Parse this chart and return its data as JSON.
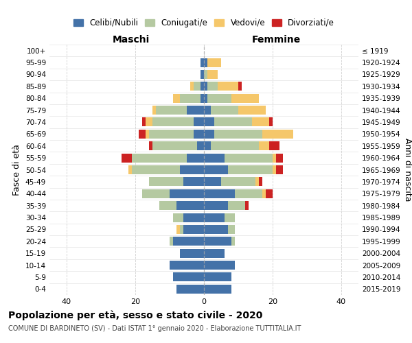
{
  "age_groups": [
    "0-4",
    "5-9",
    "10-14",
    "15-19",
    "20-24",
    "25-29",
    "30-34",
    "35-39",
    "40-44",
    "45-49",
    "50-54",
    "55-59",
    "60-64",
    "65-69",
    "70-74",
    "75-79",
    "80-84",
    "85-89",
    "90-94",
    "95-99",
    "100+"
  ],
  "birth_years": [
    "2015-2019",
    "2010-2014",
    "2005-2009",
    "2000-2004",
    "1995-1999",
    "1990-1994",
    "1985-1989",
    "1980-1984",
    "1975-1979",
    "1970-1974",
    "1965-1969",
    "1960-1964",
    "1955-1959",
    "1950-1954",
    "1945-1949",
    "1940-1944",
    "1935-1939",
    "1930-1934",
    "1925-1929",
    "1920-1924",
    "≤ 1919"
  ],
  "colors": {
    "celibe": "#4472a8",
    "coniugato": "#b5c9a1",
    "vedovo": "#f5c76a",
    "divorziato": "#cc2222"
  },
  "maschi": {
    "celibe": [
      8,
      9,
      10,
      7,
      9,
      6,
      6,
      8,
      10,
      6,
      7,
      5,
      2,
      3,
      3,
      5,
      1,
      1,
      1,
      1,
      0
    ],
    "coniugato": [
      0,
      0,
      0,
      0,
      1,
      1,
      3,
      5,
      8,
      10,
      14,
      16,
      13,
      13,
      12,
      9,
      6,
      2,
      0,
      0,
      0
    ],
    "vedovo": [
      0,
      0,
      0,
      0,
      0,
      1,
      0,
      0,
      0,
      0,
      1,
      0,
      0,
      1,
      2,
      1,
      2,
      1,
      0,
      0,
      0
    ],
    "divorziato": [
      0,
      0,
      0,
      0,
      0,
      0,
      0,
      0,
      0,
      0,
      0,
      3,
      1,
      2,
      1,
      0,
      0,
      0,
      0,
      0,
      0
    ]
  },
  "femmine": {
    "nubile": [
      8,
      8,
      9,
      6,
      8,
      7,
      6,
      7,
      9,
      5,
      7,
      6,
      2,
      3,
      3,
      2,
      1,
      1,
      0,
      1,
      0
    ],
    "coniugata": [
      0,
      0,
      0,
      0,
      1,
      2,
      3,
      5,
      8,
      10,
      13,
      14,
      14,
      14,
      11,
      8,
      7,
      3,
      1,
      0,
      0
    ],
    "vedova": [
      0,
      0,
      0,
      0,
      0,
      0,
      0,
      0,
      1,
      1,
      1,
      1,
      3,
      9,
      5,
      8,
      8,
      6,
      3,
      4,
      0
    ],
    "divorziata": [
      0,
      0,
      0,
      0,
      0,
      0,
      0,
      1,
      2,
      1,
      2,
      2,
      3,
      0,
      1,
      0,
      0,
      1,
      0,
      0,
      0
    ]
  },
  "xlim": 45,
  "title": "Popolazione per età, sesso e stato civile - 2020",
  "subtitle": "COMUNE DI BARDINETO (SV) - Dati ISTAT 1° gennaio 2020 - Elaborazione TUTTITALIA.IT",
  "xlabel_left": "Maschi",
  "xlabel_right": "Femmine",
  "ylabel_left": "Fasce di età",
  "ylabel_right": "Anni di nascita",
  "bg_color": "#ffffff",
  "grid_color": "#cccccc"
}
